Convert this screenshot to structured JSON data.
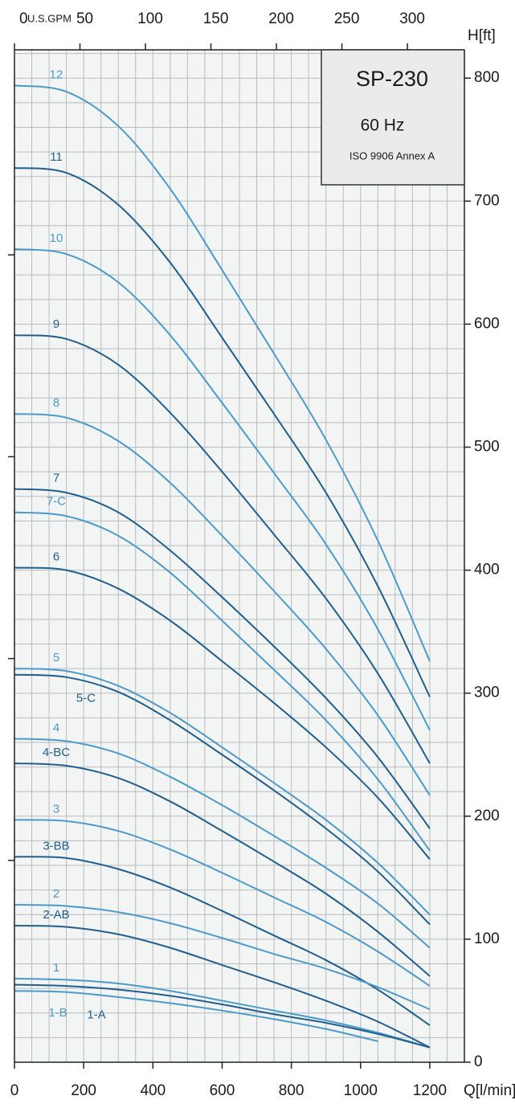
{
  "chart_data": {
    "type": "line",
    "title": "SP-230",
    "subtitle": "60 Hz",
    "annotation": "ISO 9906 Annex A",
    "x_label": "Q[l/min]",
    "y_label": "H[ft]",
    "x2_label": "U.S.GPM",
    "x": [
      0,
      150,
      300,
      450,
      600,
      750,
      900,
      1050,
      1200
    ],
    "xlim": [
      0,
      1300
    ],
    "xticks": [
      0,
      200,
      400,
      600,
      800,
      1000,
      1200
    ],
    "x2lim": [
      0,
      343.5
    ],
    "x2ticks": [
      0,
      50,
      100,
      150,
      200,
      250,
      300
    ],
    "ylim": [
      0,
      823
    ],
    "yticks": [
      0,
      100,
      200,
      300,
      400,
      500,
      600,
      700,
      800
    ],
    "y2lim": [
      0,
      250.8
    ],
    "y2ticks": [
      50,
      100,
      150,
      200
    ],
    "grid": true,
    "xgrid": [
      0,
      50,
      100,
      150,
      200,
      250,
      300,
      350,
      400,
      450,
      500,
      550,
      600,
      650,
      700,
      750,
      800,
      850,
      900,
      950,
      1000,
      1050,
      1100,
      1150,
      1200,
      1250,
      1300
    ],
    "ygrid": [
      0,
      20,
      40,
      60,
      80,
      100,
      120,
      140,
      160,
      180,
      200,
      220,
      240,
      260,
      280,
      300,
      320,
      340,
      360,
      380,
      400,
      420,
      440,
      460,
      480,
      500,
      520,
      540,
      560,
      580,
      600,
      620,
      640,
      660,
      680,
      700,
      720,
      740,
      760,
      780,
      800,
      820
    ],
    "series": [
      {
        "name": "12",
        "color": "#4a9acb",
        "values": [
          794,
          789,
          761,
          710,
          644,
          576,
          506,
          424,
          326
        ]
      },
      {
        "name": "11",
        "color": "#1f5f8f",
        "values": [
          727,
          723,
          697,
          650,
          589,
          527,
          463,
          387,
          297
        ]
      },
      {
        "name": "10",
        "color": "#4a9acb",
        "values": [
          661,
          657,
          634,
          591,
          536,
          479,
          421,
          352,
          270
        ]
      },
      {
        "name": "9",
        "color": "#1f5f8f",
        "values": [
          591,
          588,
          567,
          528,
          480,
          429,
          377,
          316,
          243
        ]
      },
      {
        "name": "8",
        "color": "#4a9acb",
        "values": [
          527,
          524,
          505,
          471,
          428,
          383,
          336,
          282,
          217
        ]
      },
      {
        "name": "7",
        "color": "#1f5f8f",
        "values": [
          466,
          463,
          447,
          416,
          378,
          338,
          296,
          248,
          190
        ]
      },
      {
        "name": "7-C",
        "color": "#4a9acb",
        "values": [
          447,
          444,
          428,
          398,
          359,
          319,
          278,
          230,
          172
        ]
      },
      {
        "name": "6",
        "color": "#1f5f8f",
        "values": [
          402,
          400,
          385,
          359,
          326,
          292,
          256,
          215,
          165
        ]
      },
      {
        "name": "5",
        "color": "#4a9acb",
        "values": [
          320,
          318,
          306,
          284,
          256,
          227,
          197,
          162,
          120
        ]
      },
      {
        "name": "5-C",
        "color": "#1f5f8f",
        "values": [
          315,
          313,
          301,
          278,
          250,
          221,
          190,
          155,
          112
        ]
      },
      {
        "name": "4",
        "color": "#4a9acb",
        "values": [
          263,
          261,
          251,
          232,
          209,
          184,
          158,
          129,
          93
        ]
      },
      {
        "name": "4-BC",
        "color": "#1f5f8f",
        "values": [
          243,
          241,
          231,
          212,
          188,
          163,
          137,
          106,
          70
        ]
      },
      {
        "name": "3",
        "color": "#4a9acb",
        "values": [
          197,
          196,
          188,
          173,
          154,
          134,
          114,
          90,
          62
        ]
      },
      {
        "name": "3-BB",
        "color": "#1f5f8f",
        "values": [
          167,
          166,
          157,
          142,
          123,
          103,
          83,
          59,
          30
        ]
      },
      {
        "name": "2",
        "color": "#4a9acb",
        "values": [
          128,
          127,
          122,
          113,
          101,
          88,
          76,
          61,
          43
        ]
      },
      {
        "name": "2-AB",
        "color": "#1f5f8f",
        "values": [
          111,
          110,
          104,
          93,
          79,
          65,
          50,
          33,
          12
        ]
      },
      {
        "name": "1",
        "color": "#4a9acb",
        "values": [
          68,
          67,
          64,
          58,
          50,
          42,
          34,
          24,
          12
        ]
      },
      {
        "name": "1-A",
        "color": "#1f5f8f",
        "values": [
          63,
          62,
          59,
          54,
          47,
          39,
          32,
          23,
          12
        ]
      },
      {
        "name": "1-B",
        "color": "#4a9acb",
        "values": [
          58,
          57,
          53,
          48,
          42,
          35,
          27,
          17,
          null
        ]
      }
    ]
  }
}
